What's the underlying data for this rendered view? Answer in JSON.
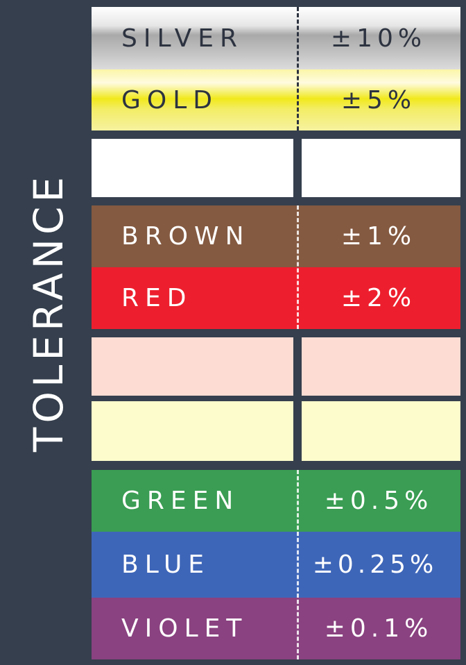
{
  "header": {
    "title": "TOLERANCE"
  },
  "bands": [
    {
      "key": "silver",
      "name": "SILVER",
      "value": "±10%",
      "color": "#b9b9b9"
    },
    {
      "key": "gold",
      "name": "GOLD",
      "value": "±5%",
      "color": "#f2ec33"
    },
    {
      "key": "brown",
      "name": "BROWN",
      "value": "±1%",
      "color": "#845a41"
    },
    {
      "key": "red",
      "name": "RED",
      "value": "±2%",
      "color": "#ed1f2e"
    },
    {
      "key": "green",
      "name": "GREEN",
      "value": "±0.5%",
      "color": "#3a9d53"
    },
    {
      "key": "blue",
      "name": "BLUE",
      "value": "±0.25%",
      "color": "#3e66b8"
    },
    {
      "key": "violet",
      "name": "VIOLET",
      "value": "±0.1%",
      "color": "#8a4280"
    }
  ],
  "colors": {
    "background": "#353f4d",
    "blank_white": "#ffffff",
    "blank_pink": "#fcdcd3",
    "blank_cream": "#fdfccc"
  }
}
